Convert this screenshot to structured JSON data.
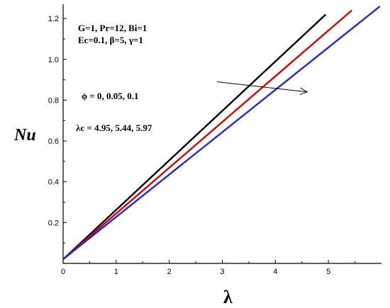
{
  "chart_data": {
    "type": "line",
    "xlabel": "λ",
    "ylabel": "Nu",
    "xlim": [
      0,
      6
    ],
    "ylim": [
      0,
      1.27
    ],
    "x_ticks": [
      "0",
      "1",
      "2",
      "3",
      "4",
      "5"
    ],
    "y_ticks": [
      "0.2",
      "0.4",
      "0.6",
      "0.8",
      "1.0",
      "1.2"
    ],
    "grid": false,
    "series": [
      {
        "color": "#000000",
        "x": [
          0,
          4.95
        ],
        "y": [
          0.02,
          1.22
        ]
      },
      {
        "color": "#dd0000",
        "x": [
          0,
          5.44
        ],
        "y": [
          0.02,
          1.24
        ]
      },
      {
        "color": "#2222dd",
        "x": [
          0,
          5.97
        ],
        "y": [
          0.02,
          1.26
        ]
      }
    ],
    "annotations": [
      "G=1, Pr=12, Bi=1",
      "Ec=0.1, β=5, γ=1",
      "ϕ = 0, 0.05, 0.1",
      "λc = 4.95, 5.44, 5.97"
    ],
    "arrow": {
      "from": [
        2.9,
        0.89
      ],
      "to": [
        4.6,
        0.84
      ]
    }
  }
}
